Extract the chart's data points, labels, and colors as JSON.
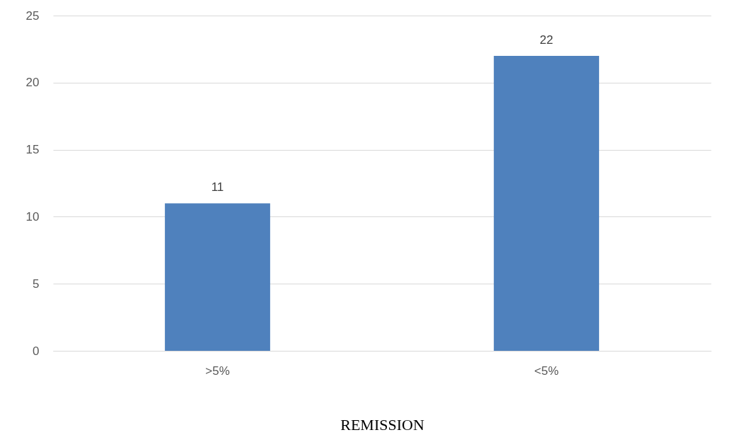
{
  "chart_data": {
    "type": "bar",
    "xlabel": "REMISSION",
    "categories": [
      ">5%",
      "<5%"
    ],
    "values": [
      11,
      22
    ],
    "color": "#4f81bd",
    "ylim": [
      0,
      25
    ],
    "yticks": [
      0,
      5,
      10,
      15,
      20,
      25
    ],
    "grid": "y",
    "data_labels": true
  }
}
